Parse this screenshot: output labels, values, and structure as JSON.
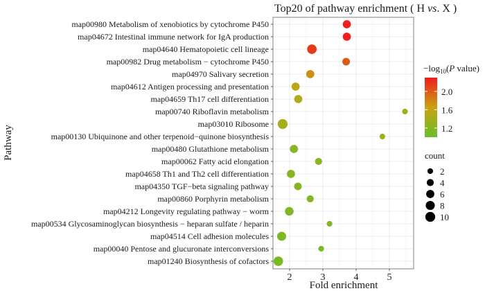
{
  "chart_data": {
    "type": "scatter",
    "title_main": "Top20 of pathway enrichment ( H ",
    "title_italic": "vs",
    "title_tail": ". X )",
    "xlabel": "Fold enrichment",
    "ylabel": "Pathway",
    "xlim": [
      1.5,
      5.73
    ],
    "x_ticks": [
      2,
      3,
      4,
      5
    ],
    "grid": true,
    "pathways": [
      {
        "label": "map00980 Metabolism of xenobiotics by cytochrome P450",
        "fold": 3.72,
        "count": 6,
        "neglog10p": 2.28
      },
      {
        "label": "map04672 Intestinal immune network for IgA production",
        "fold": 3.72,
        "count": 6,
        "neglog10p": 2.28
      },
      {
        "label": "map04640 Hematopoietic cell lineage",
        "fold": 2.67,
        "count": 9,
        "neglog10p": 2.15
      },
      {
        "label": "map00982 Drug metabolism − cytochrome P450",
        "fold": 3.7,
        "count": 5,
        "neglog10p": 2.0
      },
      {
        "label": "map04970 Salivary secretion",
        "fold": 2.62,
        "count": 6,
        "neglog10p": 1.75
      },
      {
        "label": "map04612 Antigen processing and presentation",
        "fold": 2.18,
        "count": 6,
        "neglog10p": 1.55
      },
      {
        "label": "map04659 Th17 cell differentiation",
        "fold": 2.26,
        "count": 6,
        "neglog10p": 1.48
      },
      {
        "label": "map00740 Riboflavin metabolism",
        "fold": 5.47,
        "count": 2,
        "neglog10p": 1.38
      },
      {
        "label": "map03010 Ribosome",
        "fold": 1.79,
        "count": 10,
        "neglog10p": 1.42
      },
      {
        "label": "map00130 Ubiquinone and other terpenoid−quinone biosynthesis",
        "fold": 4.79,
        "count": 2,
        "neglog10p": 1.32
      },
      {
        "label": "map00480 Glutathione metabolism",
        "fold": 2.13,
        "count": 6,
        "neglog10p": 1.22
      },
      {
        "label": "map00062 Fatty acid elongation",
        "fold": 2.87,
        "count": 4,
        "neglog10p": 1.2
      },
      {
        "label": "map04658 Th1 and Th2 cell differentiation",
        "fold": 2.04,
        "count": 6,
        "neglog10p": 1.18
      },
      {
        "label": "map04350 TGF−beta signaling pathway",
        "fold": 2.25,
        "count": 5,
        "neglog10p": 1.17
      },
      {
        "label": "map00860 Porphyrin metabolism",
        "fold": 2.62,
        "count": 4,
        "neglog10p": 1.16
      },
      {
        "label": "map04212 Longevity regulating pathway − worm",
        "fold": 1.99,
        "count": 7,
        "neglog10p": 1.15
      },
      {
        "label": "map00534 Glycosaminoglycan biosynthesis − heparan sulfate / heparin",
        "fold": 3.2,
        "count": 2,
        "neglog10p": 1.14
      },
      {
        "label": "map04514 Cell adhesion molecules",
        "fold": 1.76,
        "count": 8,
        "neglog10p": 1.13
      },
      {
        "label": "map00040 Pentose and glucuronate interconversions",
        "fold": 2.95,
        "count": 2,
        "neglog10p": 1.12
      },
      {
        "label": "map01240 Biosynthesis of cofactors",
        "fold": 1.66,
        "count": 9,
        "neglog10p": 1.1
      }
    ],
    "color_legend": {
      "title_prefix": "−log",
      "title_sub": "10",
      "title_open": "(",
      "title_italic": "P",
      "title_close": " value)",
      "range": [
        1.0,
        2.3
      ],
      "ticks": [
        "2.0",
        "1.6",
        "1.2"
      ],
      "tick_values": [
        2.0,
        1.6,
        1.2
      ],
      "low_color": "#6cbd2a",
      "mid_color": "#c9a412",
      "high_color": "#ee1c1c"
    },
    "size_legend": {
      "title": "count",
      "values": [
        2,
        4,
        6,
        8,
        10
      ]
    }
  }
}
